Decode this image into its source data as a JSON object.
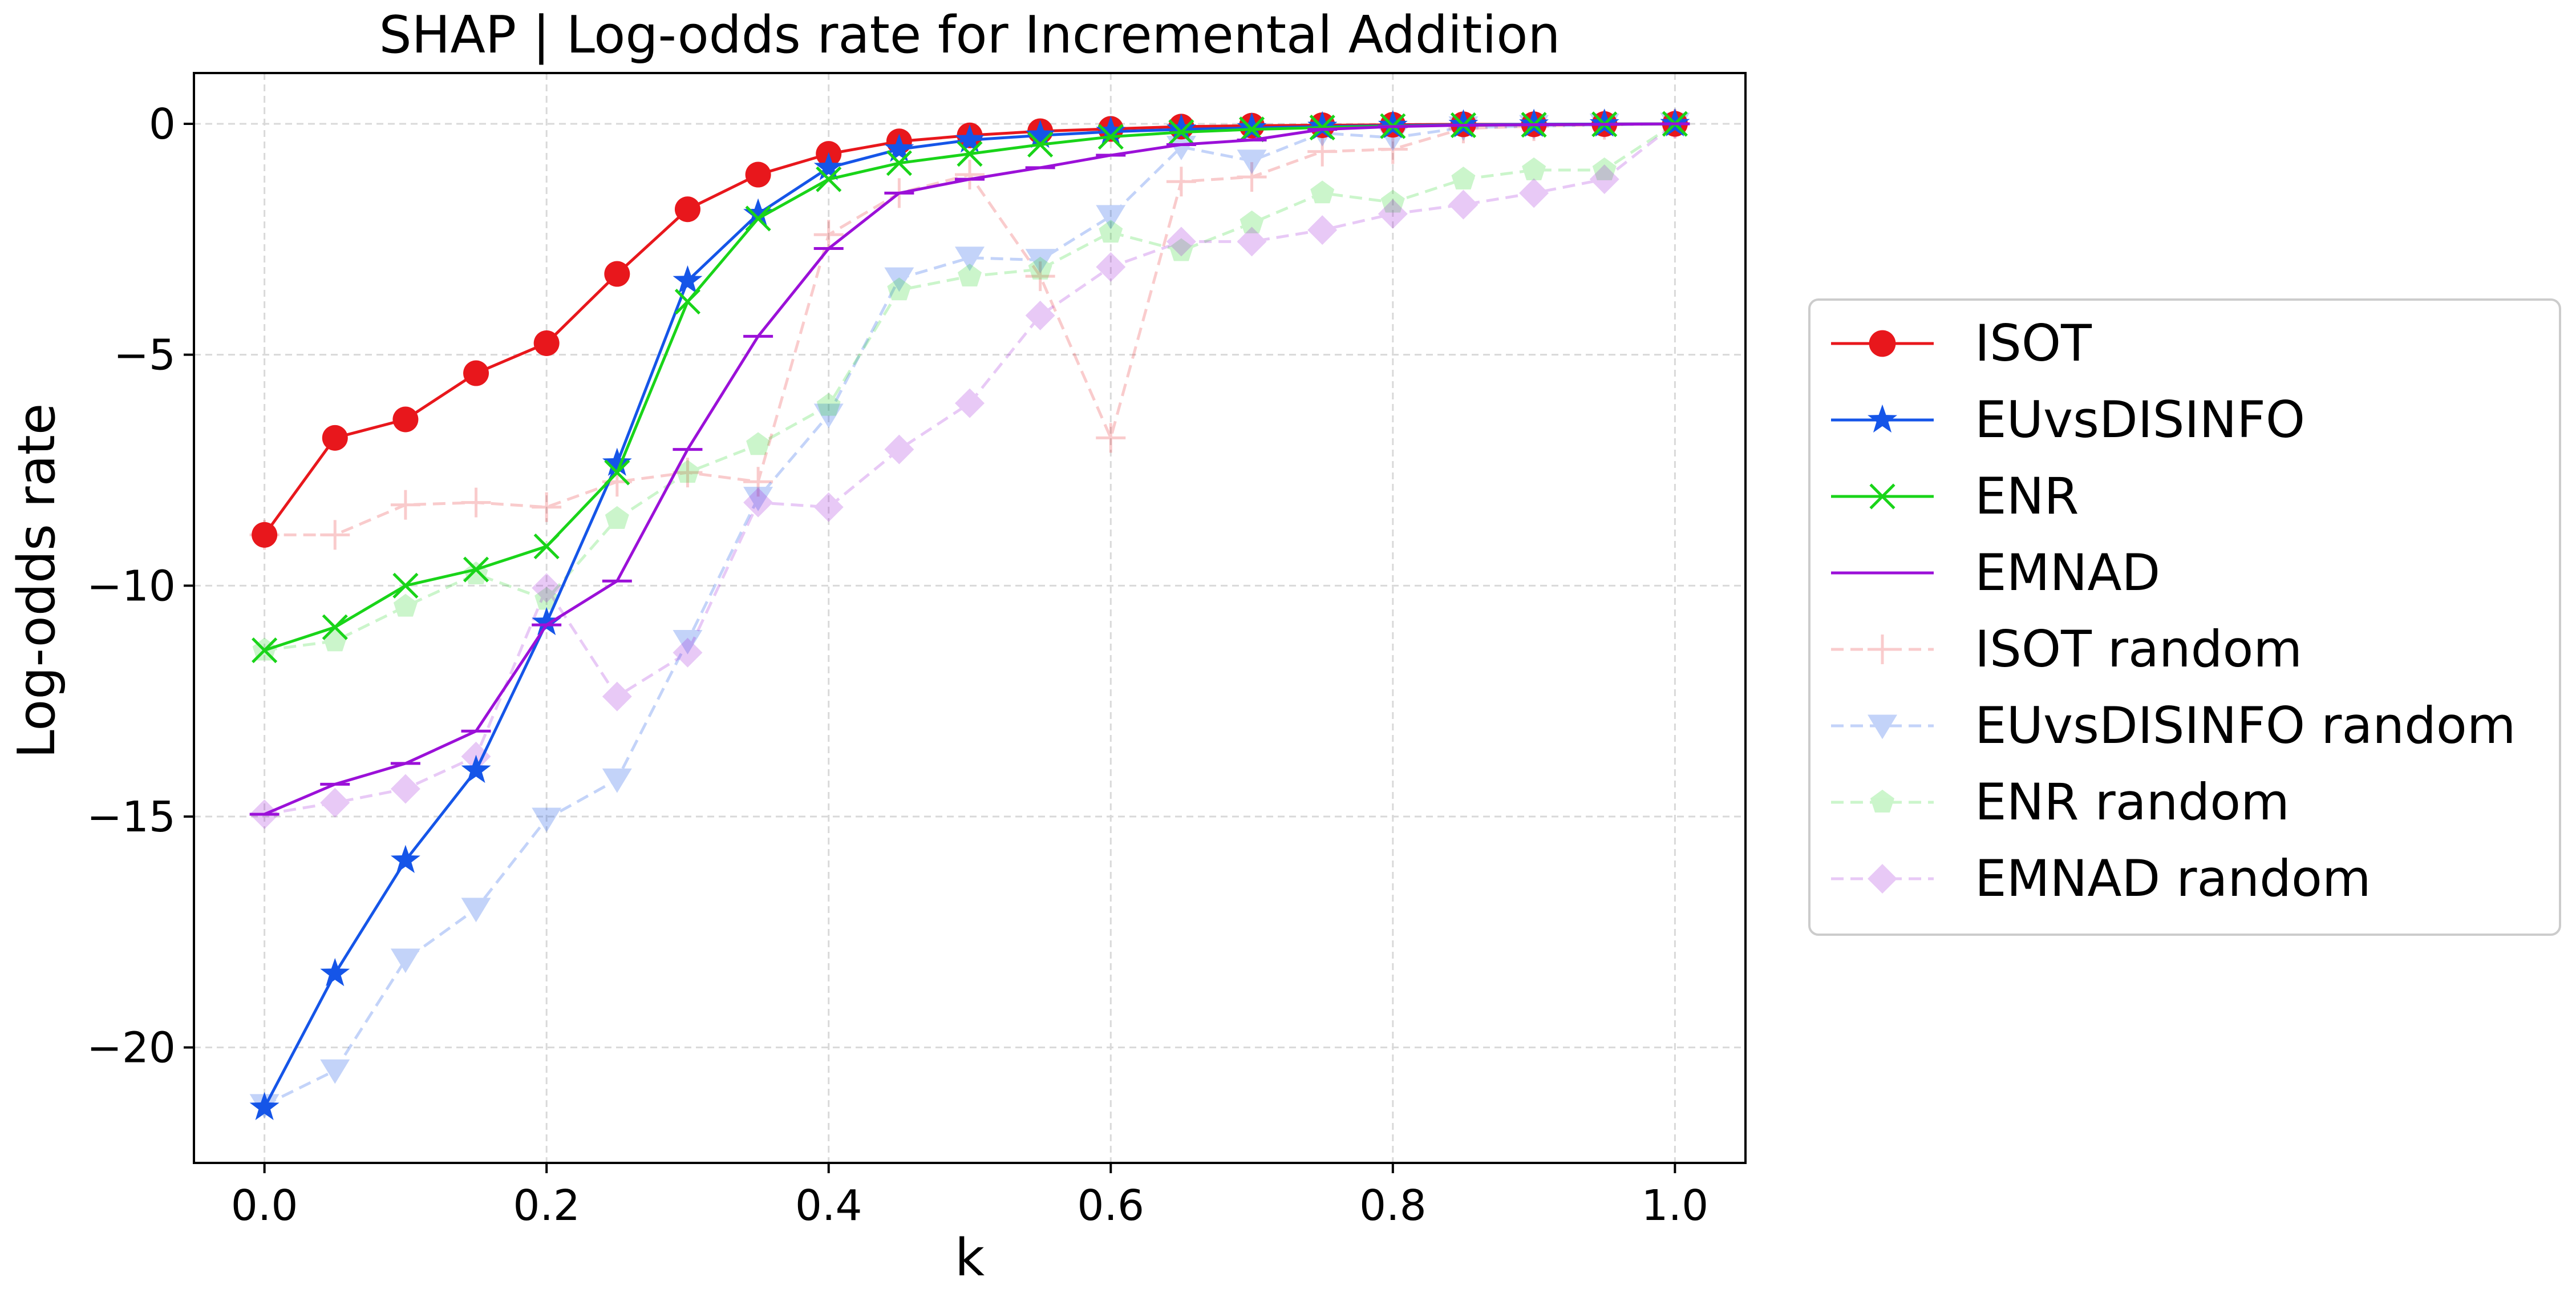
{
  "chart_data": {
    "type": "line",
    "title": "SHAP | Log-odds rate for Incremental Addition",
    "xlabel": "k",
    "ylabel": "Log-odds rate",
    "xlim": [
      -0.05,
      1.05
    ],
    "ylim": [
      -22.5,
      1.1
    ],
    "xticks": [
      0.0,
      0.2,
      0.4,
      0.6,
      0.8,
      1.0
    ],
    "xtick_labels": [
      "0.0",
      "0.2",
      "0.4",
      "0.6",
      "0.8",
      "1.0"
    ],
    "yticks": [
      -20,
      -15,
      -10,
      -5,
      0
    ],
    "ytick_labels": [
      "−20",
      "−15",
      "−10",
      "−5",
      "0"
    ],
    "grid": true,
    "legend_position": "right-outside",
    "x": [
      0.0,
      0.05,
      0.1,
      0.15,
      0.2,
      0.25,
      0.3,
      0.35,
      0.4,
      0.45,
      0.5,
      0.55,
      0.6,
      0.65,
      0.7,
      0.75,
      0.8,
      0.85,
      0.9,
      0.95,
      1.0
    ],
    "series": [
      {
        "name": "ISOT",
        "color": "#e8171c",
        "marker": "circle",
        "dashed": false,
        "alpha": 1.0,
        "values": [
          -8.9,
          -6.8,
          -6.4,
          -5.4,
          -4.75,
          -3.25,
          -1.85,
          -1.1,
          -0.65,
          -0.38,
          -0.25,
          -0.16,
          -0.11,
          -0.06,
          -0.04,
          -0.03,
          -0.02,
          -0.01,
          -0.01,
          -0.005,
          0.0
        ]
      },
      {
        "name": "EUvsDISINFO",
        "color": "#1555e8",
        "marker": "star",
        "dashed": false,
        "alpha": 1.0,
        "values": [
          -21.3,
          -18.4,
          -15.95,
          -14.0,
          -10.8,
          -7.35,
          -3.4,
          -1.95,
          -0.95,
          -0.55,
          -0.35,
          -0.25,
          -0.17,
          -0.12,
          -0.09,
          -0.06,
          -0.04,
          -0.02,
          -0.01,
          -0.005,
          0.0
        ]
      },
      {
        "name": "ENR",
        "color": "#19d419",
        "marker": "x",
        "dashed": false,
        "alpha": 1.0,
        "values": [
          -11.4,
          -10.9,
          -10.0,
          -9.65,
          -9.15,
          -7.55,
          -3.85,
          -2.05,
          -1.2,
          -0.85,
          -0.65,
          -0.45,
          -0.28,
          -0.18,
          -0.12,
          -0.08,
          -0.05,
          -0.03,
          -0.02,
          -0.01,
          0.0
        ]
      },
      {
        "name": "EMNAD",
        "color": "#9b10d8",
        "marker": "hline",
        "dashed": false,
        "alpha": 1.0,
        "values": [
          -14.95,
          -14.3,
          -13.85,
          -13.15,
          -10.85,
          -9.9,
          -7.05,
          -4.6,
          -2.7,
          -1.5,
          -1.2,
          -0.95,
          -0.68,
          -0.45,
          -0.35,
          -0.12,
          -0.06,
          -0.03,
          -0.02,
          -0.01,
          0.0
        ]
      },
      {
        "name": "ISOT random",
        "color": "#e8171c",
        "marker": "plus",
        "dashed": true,
        "alpha": 0.22,
        "values": [
          -8.9,
          -8.9,
          -8.25,
          -8.2,
          -8.3,
          -7.75,
          -7.55,
          -7.75,
          -2.4,
          -1.5,
          -1.1,
          -3.3,
          -6.8,
          -1.25,
          -1.15,
          -0.6,
          -0.55,
          -0.1,
          -0.05,
          -0.02,
          0.0
        ]
      },
      {
        "name": "EUvsDISINFO random",
        "color": "#1555e8",
        "marker": "triangle-down",
        "dashed": true,
        "alpha": 0.25,
        "values": [
          -21.25,
          -20.5,
          -18.1,
          -17.0,
          -15.05,
          -14.2,
          -11.2,
          -8.1,
          -6.3,
          -3.35,
          -2.9,
          -2.95,
          -2.0,
          -0.5,
          -0.8,
          -0.2,
          -0.3,
          -0.08,
          -0.05,
          -0.02,
          0.0
        ]
      },
      {
        "name": "ENR random",
        "color": "#19d419",
        "marker": "pentagon",
        "dashed": true,
        "alpha": 0.22,
        "values": [
          -11.4,
          -11.2,
          -10.45,
          -9.75,
          -10.3,
          -8.55,
          -7.55,
          -6.95,
          -6.1,
          -3.6,
          -3.3,
          -3.15,
          -2.35,
          -2.75,
          -2.15,
          -1.5,
          -1.7,
          -1.2,
          -1.0,
          -1.0,
          0.0
        ]
      },
      {
        "name": "EMNAD random",
        "color": "#9b10d8",
        "marker": "diamond",
        "dashed": true,
        "alpha": 0.22,
        "values": [
          -14.95,
          -14.7,
          -14.4,
          -13.7,
          -10.05,
          -12.4,
          -11.45,
          -8.2,
          -8.3,
          -7.05,
          -6.05,
          -4.15,
          -3.1,
          -2.55,
          -2.55,
          -2.3,
          -1.95,
          -1.75,
          -1.5,
          -1.2,
          0.0
        ]
      }
    ]
  }
}
